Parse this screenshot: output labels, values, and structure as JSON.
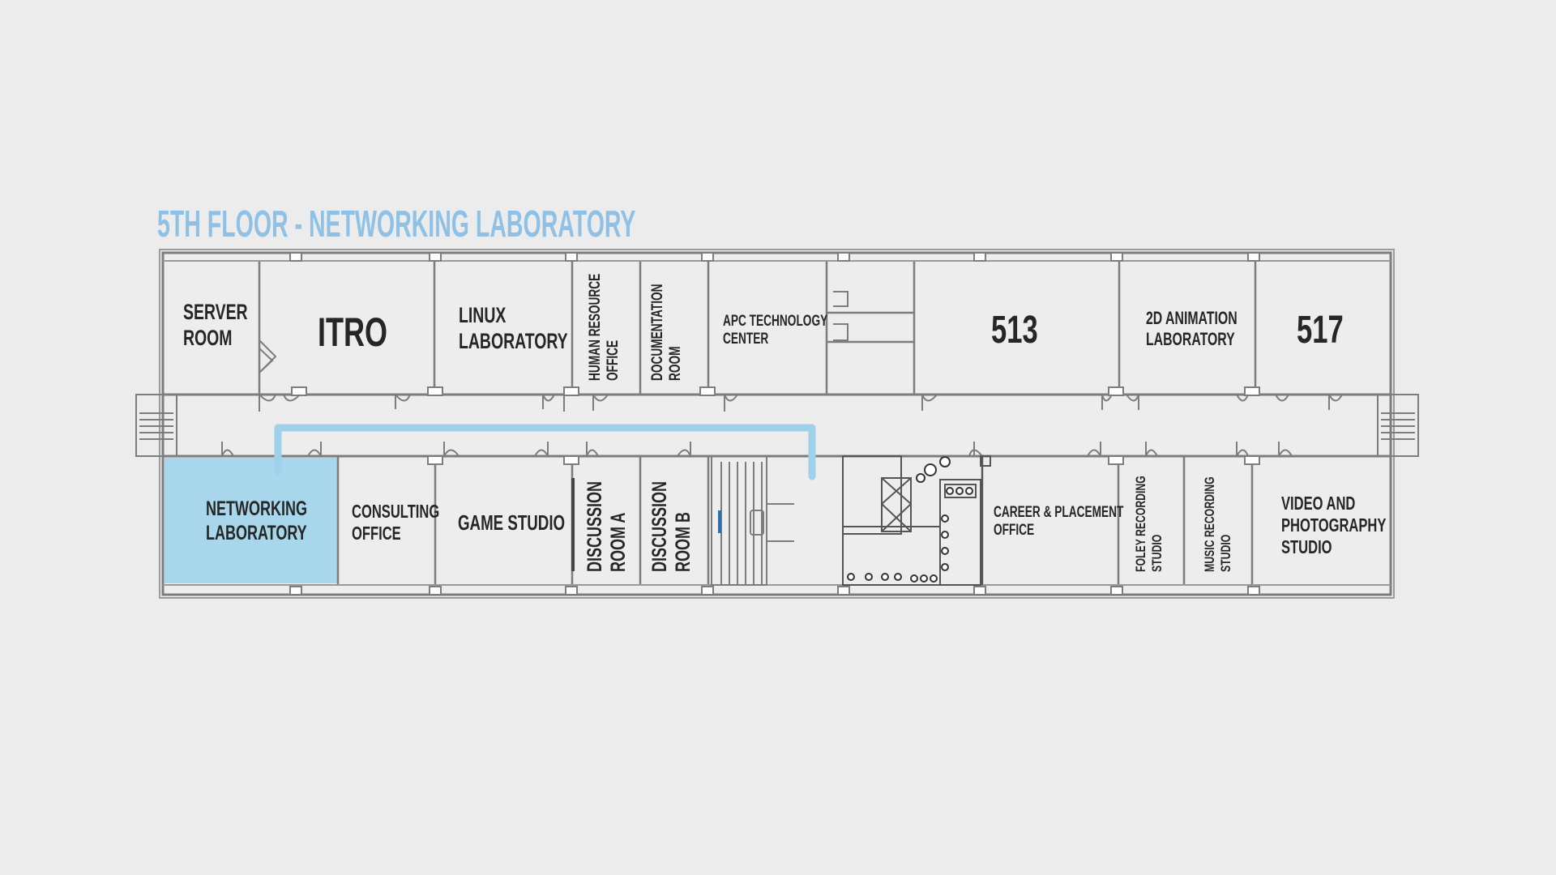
{
  "title": "5TH FLOOR - NETWORKING LABORATORY",
  "colors": {
    "background": "#ececec",
    "title": "#8fc0e6",
    "highlight_room": "#a8d6ea",
    "route": "#9fd1ea",
    "wall": "#7d7d7d",
    "room_fill": "#ededed",
    "text": "#262626"
  },
  "highlighted_room": "NETWORKING\nLABORATORY",
  "rooms": {
    "server_room": "SERVER\nROOM",
    "itro": "ITRO",
    "linux_lab": "LINUX\nLABORATORY",
    "hr_office": "HUMAN RESOURCE\nOFFICE",
    "documentation_room": "DOCUMENTATION\nROOM",
    "apc_center": "APC TECHNOLOGY\nCENTER",
    "room_513": "513",
    "animation_lab": "2D ANIMATION\nLABORATORY",
    "room_517": "517",
    "networking_lab": "NETWORKING\nLABORATORY",
    "consulting_office": "CONSULTING\nOFFICE",
    "game_studio": "GAME STUDIO",
    "discussion_a": "DISCUSSION\nROOM A",
    "discussion_b": "DISCUSSION\nROOM B",
    "career_office": "CAREER & PLACEMENT\nOFFICE",
    "foley_studio": "FOLEY RECORDING\nSTUDIO",
    "music_studio": "MUSIC RECORDING\nSTUDIO",
    "video_studio": "VIDEO AND\nPHOTOGRAPHY\nSTUDIO"
  }
}
